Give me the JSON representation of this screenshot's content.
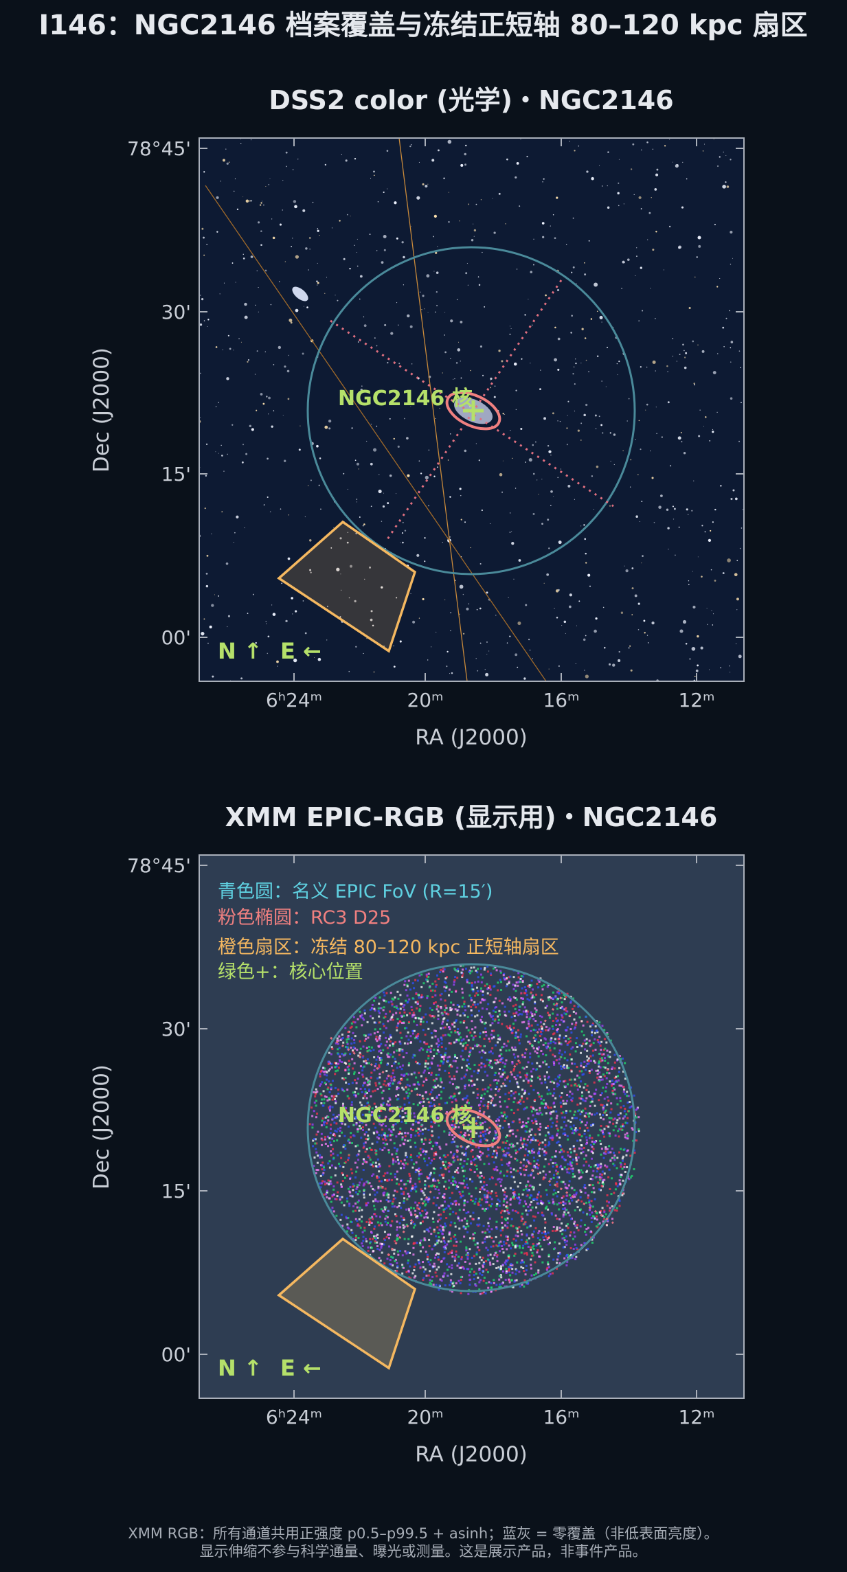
{
  "title": "I146：NGC2146 档案覆盖与冻结正短轴 80–120 kpc 扇区",
  "panels": [
    {
      "title": "DSS2 color (光学)・NGC2146",
      "x_label": "RA (J2000)",
      "y_label": "Dec (J2000)",
      "x_ticks": [
        "6ʰ24ᵐ",
        "20ᵐ",
        "16ᵐ",
        "12ᵐ"
      ],
      "y_ticks": [
        "78°45'",
        "30'",
        "15'",
        "00'"
      ],
      "target_label": "NGC2146 核",
      "compass": [
        "N ↑",
        "E ←"
      ]
    },
    {
      "title": "XMM EPIC-RGB (显示用)・NGC2146",
      "x_label": "RA (J2000)",
      "y_label": "Dec (J2000)",
      "x_ticks": [
        "6ʰ24ᵐ",
        "20ᵐ",
        "16ᵐ",
        "12ᵐ"
      ],
      "y_ticks": [
        "78°45'",
        "30'",
        "15'",
        "00'"
      ],
      "target_label": "NGC2146 核",
      "compass": [
        "N ↑",
        "E ←"
      ],
      "legend": [
        "青色圆：名义 EPIC FoV (R=15′)",
        "粉色椭圆：RC3 D25",
        "橙色扇区：冻结 80–120 kpc 正短轴扇区",
        "绿色+：核心位置"
      ]
    }
  ],
  "footer": [
    "XMM RGB：所有通道共用正强度 p0.5–p99.5 + asinh；蓝灰 = 零覆盖（非低表面亮度）。",
    "显示伸缩不参与科学通量、曝光或测量。这是展示产品，非事件产品。"
  ]
}
